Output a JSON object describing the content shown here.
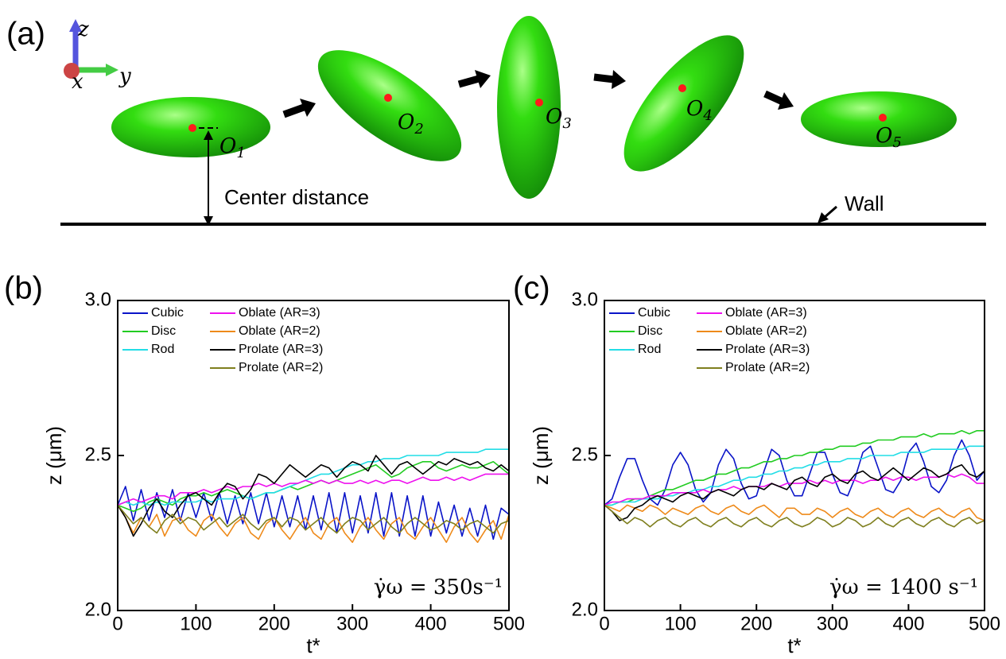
{
  "diagram": {
    "panel_label": "(a)",
    "axes": {
      "z": "z",
      "x": "x",
      "y": "y"
    },
    "centers": [
      {
        "letter": "O",
        "sub": "1"
      },
      {
        "letter": "O",
        "sub": "2"
      },
      {
        "letter": "O",
        "sub": "3"
      },
      {
        "letter": "O",
        "sub": "4"
      },
      {
        "letter": "O",
        "sub": "5"
      }
    ],
    "center_distance": "Center distance",
    "wall": "Wall"
  },
  "chart_data": [
    {
      "type": "line",
      "panel_label": "(b)",
      "xlabel": "t*",
      "ylabel": "z (μm)",
      "annotation": "γ̇ω = 350s⁻¹",
      "xlim": [
        0,
        500
      ],
      "ylim": [
        2,
        3
      ],
      "xticks": [
        0,
        100,
        200,
        300,
        400,
        500
      ],
      "yticks": [
        {
          "value": 2,
          "label": "2.0"
        },
        2.5,
        {
          "value": 3,
          "label": "3.0"
        }
      ],
      "legend": "upper left",
      "x": [
        0,
        10,
        20,
        30,
        40,
        50,
        60,
        70,
        80,
        90,
        100,
        110,
        120,
        130,
        140,
        150,
        160,
        170,
        180,
        190,
        200,
        210,
        220,
        230,
        240,
        250,
        260,
        270,
        280,
        290,
        300,
        310,
        320,
        330,
        340,
        350,
        360,
        370,
        380,
        390,
        400,
        410,
        420,
        430,
        440,
        450,
        460,
        470,
        480,
        490,
        500
      ],
      "series": [
        {
          "name": "Cubic",
          "color": "#0a14c8",
          "values": [
            2.34,
            2.4,
            2.29,
            2.39,
            2.29,
            2.38,
            2.3,
            2.39,
            2.29,
            2.38,
            2.3,
            2.38,
            2.29,
            2.38,
            2.28,
            2.37,
            2.28,
            2.38,
            2.28,
            2.38,
            2.27,
            2.37,
            2.27,
            2.37,
            2.26,
            2.37,
            2.26,
            2.38,
            2.25,
            2.38,
            2.25,
            2.37,
            2.25,
            2.38,
            2.24,
            2.38,
            2.24,
            2.37,
            2.24,
            2.37,
            2.24,
            2.35,
            2.25,
            2.34,
            2.24,
            2.33,
            2.24,
            2.34,
            2.23,
            2.33,
            2.31
          ]
        },
        {
          "name": "Disc",
          "color": "#22cc22",
          "values": [
            2.34,
            2.33,
            2.32,
            2.33,
            2.35,
            2.36,
            2.35,
            2.34,
            2.36,
            2.37,
            2.37,
            2.38,
            2.37,
            2.38,
            2.39,
            2.38,
            2.37,
            2.36,
            2.37,
            2.38,
            2.38,
            2.39,
            2.4,
            2.39,
            2.4,
            2.41,
            2.42,
            2.41,
            2.42,
            2.43,
            2.44,
            2.45,
            2.46,
            2.47,
            2.45,
            2.43,
            2.44,
            2.46,
            2.47,
            2.48,
            2.48,
            2.46,
            2.45,
            2.46,
            2.47,
            2.46,
            2.46,
            2.47,
            2.48,
            2.46,
            2.44
          ]
        },
        {
          "name": "Rod",
          "color": "#22dde6",
          "values": [
            2.34,
            2.35,
            2.34,
            2.35,
            2.34,
            2.35,
            2.34,
            2.35,
            2.35,
            2.35,
            2.35,
            2.36,
            2.35,
            2.36,
            2.36,
            2.36,
            2.37,
            2.36,
            2.37,
            2.38,
            2.38,
            2.39,
            2.4,
            2.41,
            2.42,
            2.43,
            2.44,
            2.44,
            2.45,
            2.46,
            2.47,
            2.47,
            2.48,
            2.48,
            2.49,
            2.49,
            2.49,
            2.5,
            2.5,
            2.5,
            2.5,
            2.5,
            2.51,
            2.51,
            2.51,
            2.51,
            2.51,
            2.52,
            2.52,
            2.52,
            2.52
          ]
        },
        {
          "name": "Oblate (AR=3)",
          "color": "#ee11ee",
          "values": [
            2.34,
            2.35,
            2.36,
            2.35,
            2.36,
            2.37,
            2.37,
            2.36,
            2.38,
            2.38,
            2.38,
            2.39,
            2.38,
            2.39,
            2.4,
            2.39,
            2.4,
            2.4,
            2.41,
            2.4,
            2.41,
            2.4,
            2.41,
            2.41,
            2.42,
            2.41,
            2.42,
            2.41,
            2.42,
            2.41,
            2.41,
            2.42,
            2.41,
            2.42,
            2.41,
            2.42,
            2.42,
            2.41,
            2.42,
            2.43,
            2.42,
            2.42,
            2.43,
            2.42,
            2.43,
            2.42,
            2.43,
            2.44,
            2.44,
            2.44,
            2.44
          ]
        },
        {
          "name": "Oblate (AR=2)",
          "color": "#ee8a1a",
          "values": [
            2.34,
            2.3,
            2.25,
            2.3,
            2.27,
            2.31,
            2.24,
            2.29,
            2.3,
            2.26,
            2.24,
            2.29,
            2.31,
            2.27,
            2.24,
            2.28,
            2.3,
            2.25,
            2.23,
            2.28,
            2.3,
            2.26,
            2.23,
            2.27,
            2.3,
            2.25,
            2.23,
            2.28,
            2.3,
            2.25,
            2.22,
            2.27,
            2.3,
            2.26,
            2.23,
            2.28,
            2.3,
            2.25,
            2.23,
            2.27,
            2.3,
            2.26,
            2.22,
            2.27,
            2.3,
            2.25,
            2.22,
            2.26,
            2.29,
            2.23,
            2.31
          ]
        },
        {
          "name": "Prolate (AR=3)",
          "color": "#000000",
          "values": [
            2.34,
            2.3,
            2.24,
            2.28,
            2.33,
            2.36,
            2.32,
            2.3,
            2.34,
            2.37,
            2.38,
            2.36,
            2.34,
            2.38,
            2.41,
            2.4,
            2.36,
            2.39,
            2.44,
            2.43,
            2.41,
            2.44,
            2.47,
            2.45,
            2.43,
            2.45,
            2.47,
            2.46,
            2.43,
            2.46,
            2.48,
            2.47,
            2.45,
            2.5,
            2.47,
            2.44,
            2.47,
            2.48,
            2.46,
            2.44,
            2.46,
            2.48,
            2.47,
            2.49,
            2.48,
            2.47,
            2.48,
            2.46,
            2.45,
            2.47,
            2.45
          ]
        },
        {
          "name": "Prolate (AR=2)",
          "color": "#7f7f1e",
          "values": [
            2.34,
            2.31,
            2.28,
            2.3,
            2.27,
            2.25,
            2.29,
            2.31,
            2.28,
            2.3,
            2.29,
            2.26,
            2.28,
            2.3,
            2.27,
            2.29,
            2.31,
            2.28,
            2.26,
            2.29,
            2.3,
            2.27,
            2.3,
            2.29,
            2.26,
            2.28,
            2.3,
            2.27,
            2.25,
            2.28,
            2.3,
            2.29,
            2.26,
            2.28,
            2.3,
            2.27,
            2.25,
            2.28,
            2.3,
            2.28,
            2.26,
            2.27,
            2.29,
            2.28,
            2.26,
            2.28,
            2.29,
            2.27,
            2.25,
            2.28,
            2.29
          ]
        }
      ]
    },
    {
      "type": "line",
      "panel_label": "(c)",
      "xlabel": "t*",
      "ylabel": "z (μm)",
      "annotation": "γ̇ω = 1400 s⁻¹",
      "xlim": [
        0,
        500
      ],
      "ylim": [
        2,
        3
      ],
      "xticks": [
        0,
        100,
        200,
        300,
        400,
        500
      ],
      "yticks": [
        {
          "value": 2,
          "label": "2.0"
        },
        2.5,
        {
          "value": 3,
          "label": "3.0"
        }
      ],
      "legend": "upper left",
      "x": [
        0,
        10,
        20,
        30,
        40,
        50,
        60,
        70,
        80,
        90,
        100,
        110,
        120,
        130,
        140,
        150,
        160,
        170,
        180,
        190,
        200,
        210,
        220,
        230,
        240,
        250,
        260,
        270,
        280,
        290,
        300,
        310,
        320,
        330,
        340,
        350,
        360,
        370,
        380,
        390,
        400,
        410,
        420,
        430,
        440,
        450,
        460,
        470,
        480,
        490,
        500
      ],
      "series": [
        {
          "name": "Cubic",
          "color": "#0a14c8",
          "values": [
            2.34,
            2.36,
            2.43,
            2.49,
            2.49,
            2.42,
            2.36,
            2.34,
            2.39,
            2.47,
            2.51,
            2.47,
            2.39,
            2.35,
            2.38,
            2.47,
            2.52,
            2.49,
            2.41,
            2.36,
            2.37,
            2.45,
            2.52,
            2.5,
            2.42,
            2.37,
            2.37,
            2.44,
            2.51,
            2.51,
            2.44,
            2.38,
            2.37,
            2.43,
            2.51,
            2.53,
            2.46,
            2.39,
            2.38,
            2.42,
            2.51,
            2.54,
            2.48,
            2.4,
            2.38,
            2.42,
            2.5,
            2.55,
            2.5,
            2.42,
            2.45
          ]
        },
        {
          "name": "Disc",
          "color": "#22cc22",
          "values": [
            2.34,
            2.34,
            2.35,
            2.35,
            2.36,
            2.36,
            2.37,
            2.38,
            2.39,
            2.39,
            2.4,
            2.41,
            2.42,
            2.42,
            2.43,
            2.44,
            2.44,
            2.45,
            2.46,
            2.46,
            2.47,
            2.48,
            2.48,
            2.49,
            2.49,
            2.5,
            2.5,
            2.51,
            2.51,
            2.52,
            2.52,
            2.53,
            2.53,
            2.53,
            2.54,
            2.54,
            2.55,
            2.55,
            2.55,
            2.56,
            2.56,
            2.56,
            2.57,
            2.56,
            2.57,
            2.57,
            2.57,
            2.58,
            2.57,
            2.58,
            2.58
          ]
        },
        {
          "name": "Rod",
          "color": "#22dde6",
          "values": [
            2.34,
            2.34,
            2.35,
            2.35,
            2.35,
            2.36,
            2.36,
            2.36,
            2.37,
            2.37,
            2.38,
            2.38,
            2.39,
            2.39,
            2.4,
            2.4,
            2.41,
            2.42,
            2.42,
            2.43,
            2.43,
            2.44,
            2.44,
            2.45,
            2.45,
            2.46,
            2.46,
            2.47,
            2.47,
            2.48,
            2.48,
            2.48,
            2.49,
            2.49,
            2.49,
            2.5,
            2.5,
            2.5,
            2.5,
            2.51,
            2.51,
            2.51,
            2.51,
            2.52,
            2.52,
            2.52,
            2.52,
            2.52,
            2.53,
            2.53,
            2.53
          ]
        },
        {
          "name": "Oblate (AR=3)",
          "color": "#ee11ee",
          "values": [
            2.34,
            2.35,
            2.35,
            2.36,
            2.36,
            2.36,
            2.37,
            2.37,
            2.37,
            2.38,
            2.38,
            2.38,
            2.38,
            2.39,
            2.38,
            2.39,
            2.39,
            2.4,
            2.39,
            2.4,
            2.4,
            2.4,
            2.41,
            2.4,
            2.41,
            2.41,
            2.41,
            2.42,
            2.41,
            2.42,
            2.41,
            2.42,
            2.42,
            2.42,
            2.41,
            2.42,
            2.42,
            2.43,
            2.42,
            2.43,
            2.43,
            2.42,
            2.43,
            2.43,
            2.43,
            2.44,
            2.43,
            2.44,
            2.43,
            2.41,
            2.41
          ]
        },
        {
          "name": "Oblate (AR=2)",
          "color": "#ee8a1a",
          "values": [
            2.34,
            2.33,
            2.32,
            2.34,
            2.33,
            2.32,
            2.34,
            2.33,
            2.31,
            2.33,
            2.32,
            2.31,
            2.33,
            2.34,
            2.32,
            2.31,
            2.33,
            2.34,
            2.32,
            2.31,
            2.33,
            2.34,
            2.32,
            2.3,
            2.33,
            2.33,
            2.31,
            2.31,
            2.33,
            2.32,
            2.3,
            2.32,
            2.33,
            2.31,
            2.3,
            2.32,
            2.33,
            2.31,
            2.3,
            2.32,
            2.33,
            2.31,
            2.3,
            2.32,
            2.33,
            2.31,
            2.3,
            2.32,
            2.33,
            2.3,
            2.29
          ]
        },
        {
          "name": "Prolate (AR=3)",
          "color": "#000000",
          "values": [
            2.34,
            2.32,
            2.29,
            2.3,
            2.33,
            2.34,
            2.36,
            2.37,
            2.36,
            2.35,
            2.37,
            2.38,
            2.37,
            2.36,
            2.38,
            2.39,
            2.38,
            2.37,
            2.39,
            2.4,
            2.4,
            2.39,
            2.41,
            2.4,
            2.39,
            2.42,
            2.43,
            2.41,
            2.4,
            2.43,
            2.44,
            2.42,
            2.41,
            2.44,
            2.45,
            2.43,
            2.42,
            2.44,
            2.46,
            2.44,
            2.42,
            2.44,
            2.46,
            2.45,
            2.43,
            2.44,
            2.46,
            2.47,
            2.44,
            2.43,
            2.45
          ]
        },
        {
          "name": "Prolate (AR=2)",
          "color": "#7f7f1e",
          "values": [
            2.34,
            2.32,
            2.3,
            2.28,
            2.3,
            2.29,
            2.27,
            2.29,
            2.3,
            2.28,
            2.27,
            2.29,
            2.3,
            2.28,
            2.27,
            2.29,
            2.3,
            2.28,
            2.27,
            2.29,
            2.3,
            2.28,
            2.27,
            2.29,
            2.3,
            2.28,
            2.27,
            2.28,
            2.3,
            2.29,
            2.27,
            2.28,
            2.3,
            2.29,
            2.27,
            2.28,
            2.3,
            2.28,
            2.27,
            2.29,
            2.3,
            2.28,
            2.27,
            2.29,
            2.3,
            2.28,
            2.27,
            2.29,
            2.3,
            2.28,
            2.29
          ]
        }
      ]
    }
  ]
}
